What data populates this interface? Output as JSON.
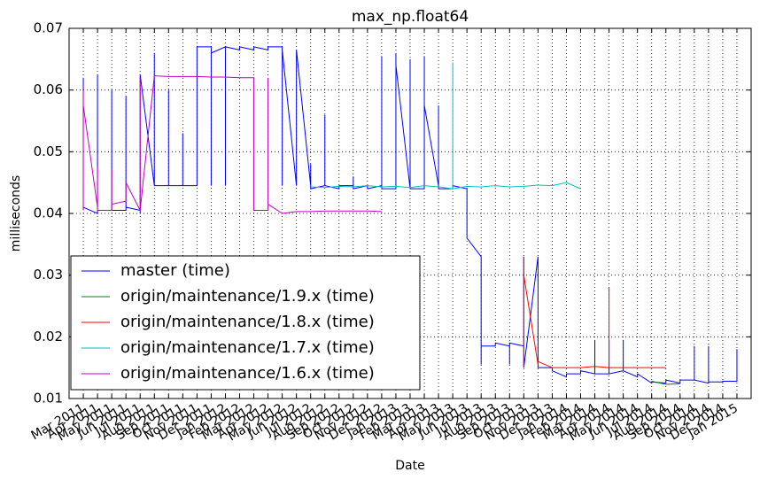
{
  "chart_data": {
    "type": "line",
    "title": "max_np.float64",
    "x_label": "Date",
    "y_label": "milliseconds",
    "xlim": [
      "2011-02",
      "2015-02"
    ],
    "ylim": [
      0.01,
      0.07
    ],
    "yticks": [
      0.01,
      0.02,
      0.03,
      0.04,
      0.05,
      0.06,
      0.07
    ],
    "xticks": [
      {
        "value": "2011-03",
        "label": "Mar 2011"
      },
      {
        "value": "2011-04",
        "label": "Apr 2011"
      },
      {
        "value": "2011-05",
        "label": "May 2011"
      },
      {
        "value": "2011-06",
        "label": "Jun 2011"
      },
      {
        "value": "2011-07",
        "label": "Jul 2011"
      },
      {
        "value": "2011-08",
        "label": "Aug 2011"
      },
      {
        "value": "2011-09",
        "label": "Sep 2011"
      },
      {
        "value": "2011-10",
        "label": "Oct 2011"
      },
      {
        "value": "2011-11",
        "label": "Nov 2011"
      },
      {
        "value": "2011-12",
        "label": "Dec 2011"
      },
      {
        "value": "2012-01",
        "label": "Jan 2012"
      },
      {
        "value": "2012-02",
        "label": "Feb 2012"
      },
      {
        "value": "2012-03",
        "label": "Mar 2012"
      },
      {
        "value": "2012-04",
        "label": "Apr 2012"
      },
      {
        "value": "2012-05",
        "label": "May 2012"
      },
      {
        "value": "2012-06",
        "label": "Jun 2012"
      },
      {
        "value": "2012-07",
        "label": "Jul 2012"
      },
      {
        "value": "2012-08",
        "label": "Aug 2012"
      },
      {
        "value": "2012-09",
        "label": "Sep 2012"
      },
      {
        "value": "2012-10",
        "label": "Oct 2012"
      },
      {
        "value": "2012-11",
        "label": "Nov 2012"
      },
      {
        "value": "2012-12",
        "label": "Dec 2012"
      },
      {
        "value": "2013-01",
        "label": "Jan 2013"
      },
      {
        "value": "2013-02",
        "label": "Feb 2013"
      },
      {
        "value": "2013-03",
        "label": "Mar 2013"
      },
      {
        "value": "2013-04",
        "label": "Apr 2013"
      },
      {
        "value": "2013-05",
        "label": "May 2013"
      },
      {
        "value": "2013-06",
        "label": "Jun 2013"
      },
      {
        "value": "2013-07",
        "label": "Jul 2013"
      },
      {
        "value": "2013-08",
        "label": "Aug 2013"
      },
      {
        "value": "2013-09",
        "label": "Sep 2013"
      },
      {
        "value": "2013-10",
        "label": "Oct 2013"
      },
      {
        "value": "2013-11",
        "label": "Nov 2013"
      },
      {
        "value": "2013-12",
        "label": "Dec 2013"
      },
      {
        "value": "2014-01",
        "label": "Jan 2014"
      },
      {
        "value": "2014-02",
        "label": "Feb 2014"
      },
      {
        "value": "2014-03",
        "label": "Mar 2014"
      },
      {
        "value": "2014-04",
        "label": "Apr 2014"
      },
      {
        "value": "2014-05",
        "label": "May 2014"
      },
      {
        "value": "2014-06",
        "label": "Jun 2014"
      },
      {
        "value": "2014-07",
        "label": "Jul 2014"
      },
      {
        "value": "2014-08",
        "label": "Aug 2014"
      },
      {
        "value": "2014-09",
        "label": "Sep 2014"
      },
      {
        "value": "2014-10",
        "label": "Oct 2014"
      },
      {
        "value": "2014-11",
        "label": "Nov 2014"
      },
      {
        "value": "2014-12",
        "label": "Dec 2014"
      },
      {
        "value": "2015-01",
        "label": "Jan 2015"
      }
    ],
    "grid": true,
    "legend": "lower left",
    "series": [
      {
        "name": "master (time)",
        "color": "#0000ff",
        "x": [
          "2011-03",
          "2011-03",
          "2011-03",
          "2011-03",
          "2011-03",
          "2011-04",
          "2011-04",
          "2011-04",
          "2011-05",
          "2011-05",
          "2011-05",
          "2011-06",
          "2011-06",
          "2011-06",
          "2011-07",
          "2011-07",
          "2011-07",
          "2011-07",
          "2011-08",
          "2011-08",
          "2011-08",
          "2011-09",
          "2011-09",
          "2011-09",
          "2011-10",
          "2011-10",
          "2011-10",
          "2011-11",
          "2011-11",
          "2011-11",
          "2011-12",
          "2011-12",
          "2011-12",
          "2012-01",
          "2012-01",
          "2012-01",
          "2012-02",
          "2012-02",
          "2012-03",
          "2012-03",
          "2012-04",
          "2012-04",
          "2012-05",
          "2012-05",
          "2012-05",
          "2012-06",
          "2012-06",
          "2012-06",
          "2012-06",
          "2012-07",
          "2012-07",
          "2012-07",
          "2012-08",
          "2012-08",
          "2012-08",
          "2012-09",
          "2012-09",
          "2012-10",
          "2012-10",
          "2012-10",
          "2012-11",
          "2012-11",
          "2012-12",
          "2012-12",
          "2012-12",
          "2013-01",
          "2013-01",
          "2013-01",
          "2013-01",
          "2013-02",
          "2013-02",
          "2013-02",
          "2013-03",
          "2013-03",
          "2013-03",
          "2013-03",
          "2013-04",
          "2013-04",
          "2013-04",
          "2013-05",
          "2013-05",
          "2013-06",
          "2013-06",
          "2013-06",
          "2013-07",
          "2013-07",
          "2013-07",
          "2013-07",
          "2013-08",
          "2013-08",
          "2013-09",
          "2013-09",
          "2013-09",
          "2013-10",
          "2013-10",
          "2013-10",
          "2013-11",
          "2013-11",
          "2013-11",
          "2013-12",
          "2013-12",
          "2014-01",
          "2014-01",
          "2014-02",
          "2014-02",
          "2014-03",
          "2014-03",
          "2014-03",
          "2014-04",
          "2014-04",
          "2014-04",
          "2014-05",
          "2014-05",
          "2014-05",
          "2014-06",
          "2014-06",
          "2014-07",
          "2014-07",
          "2014-08",
          "2014-08",
          "2014-09",
          "2014-09",
          "2014-10",
          "2014-10",
          "2014-10",
          "2014-11",
          "2014-11",
          "2014-11",
          "2014-12",
          "2014-12",
          "2015-01",
          "2015-01"
        ],
        "values": [
          0.0405,
          0.062,
          0.0405,
          0.059,
          0.041,
          0.04,
          0.0625,
          0.0405,
          0.0405,
          0.06,
          0.0405,
          0.0405,
          0.059,
          0.041,
          0.0405,
          0.0625,
          0.04,
          0.0625,
          0.0445,
          0.066,
          0.0445,
          0.0445,
          0.06,
          0.0445,
          0.0445,
          0.053,
          0.0445,
          0.0445,
          0.066,
          0.067,
          0.067,
          0.0445,
          0.066,
          0.067,
          0.0445,
          0.067,
          0.0665,
          0.067,
          0.0665,
          0.067,
          0.0665,
          0.067,
          0.067,
          0.0445,
          0.0665,
          0.0445,
          0.0665,
          0.0445,
          0.0665,
          0.0445,
          0.048,
          0.044,
          0.0445,
          0.056,
          0.0445,
          0.044,
          0.0445,
          0.0445,
          0.046,
          0.044,
          0.0445,
          0.044,
          0.0445,
          0.0655,
          0.044,
          0.044,
          0.066,
          0.044,
          0.064,
          0.044,
          0.065,
          0.044,
          0.044,
          0.0655,
          0.044,
          0.0575,
          0.0445,
          0.0575,
          0.044,
          0.044,
          0.0445,
          0.044,
          0.0365,
          0.036,
          0.033,
          0.0155,
          0.0185,
          0.0185,
          0.0185,
          0.019,
          0.0185,
          0.0155,
          0.019,
          0.0185,
          0.033,
          0.015,
          0.033,
          0.0155,
          0.015,
          0.015,
          0.0145,
          0.0135,
          0.014,
          0.014,
          0.0145,
          0.014,
          0.0195,
          0.014,
          0.014,
          0.0195,
          0.014,
          0.0145,
          0.0195,
          0.0145,
          0.0135,
          0.014,
          0.0125,
          0.0127,
          0.0125,
          0.013,
          0.0125,
          0.013,
          0.013,
          0.0185,
          0.013,
          0.0125,
          0.0185,
          0.0127,
          0.0127,
          0.0128,
          0.0128,
          0.018
        ]
      },
      {
        "name": "origin/maintenance/1.9.x (time)",
        "color": "#008000",
        "x": [
          "2014-07",
          "2014-08",
          "2014-09"
        ],
        "values": [
          0.0128,
          0.0123,
          0.0124
        ]
      },
      {
        "name": "origin/maintenance/1.8.x (time)",
        "color": "#ff0000",
        "x": [
          "2013-10",
          "2013-10",
          "2013-10",
          "2013-10",
          "2013-11",
          "2013-11",
          "2013-12",
          "2014-01",
          "2014-02",
          "2014-03",
          "2014-04",
          "2014-04",
          "2014-04",
          "2014-05",
          "2014-06",
          "2014-07",
          "2014-08"
        ],
        "values": [
          0.016,
          0.033,
          0.015,
          0.03,
          0.0155,
          0.016,
          0.015,
          0.015,
          0.015,
          0.0152,
          0.015,
          0.028,
          0.015,
          0.015,
          0.015,
          0.015,
          0.015
        ]
      },
      {
        "name": "origin/maintenance/1.7.x (time)",
        "color": "#00bfbf",
        "x": [
          "2012-07",
          "2012-08",
          "2012-09",
          "2012-10",
          "2012-11",
          "2012-12",
          "2013-01",
          "2013-02",
          "2013-03",
          "2013-04",
          "2013-05",
          "2013-05",
          "2013-05",
          "2013-06",
          "2013-07",
          "2013-08",
          "2013-09",
          "2013-10",
          "2013-11",
          "2013-12",
          "2014-01",
          "2014-02"
        ],
        "values": [
          0.0443,
          0.0442,
          0.0444,
          0.0443,
          0.0445,
          0.0443,
          0.0444,
          0.0442,
          0.0445,
          0.0443,
          0.044,
          0.0645,
          0.044,
          0.0444,
          0.0443,
          0.0445,
          0.0443,
          0.0444,
          0.0446,
          0.0445,
          0.045,
          0.044
        ]
      },
      {
        "name": "origin/maintenance/1.6.x (time)",
        "color": "#bf00bf",
        "x": [
          "2011-03",
          "2011-03",
          "2011-03",
          "2011-03",
          "2011-04",
          "2011-04",
          "2011-04",
          "2011-05",
          "2011-05",
          "2011-05",
          "2011-06",
          "2011-06",
          "2011-07",
          "2011-07",
          "2011-07",
          "2011-08",
          "2011-09",
          "2011-10",
          "2011-11",
          "2011-12",
          "2012-01",
          "2012-02",
          "2012-03",
          "2012-03",
          "2012-03",
          "2012-04",
          "2012-04",
          "2012-04",
          "2012-04",
          "2012-05",
          "2012-06",
          "2012-07",
          "2012-08",
          "2012-09",
          "2012-10",
          "2012-11",
          "2012-12"
        ],
        "values": [
          0.0405,
          0.06,
          0.0405,
          0.0575,
          0.041,
          0.0475,
          0.0405,
          0.0405,
          0.047,
          0.0415,
          0.042,
          0.045,
          0.0405,
          0.062,
          0.0405,
          0.0623,
          0.0622,
          0.0622,
          0.0622,
          0.0621,
          0.0621,
          0.062,
          0.062,
          0.0605,
          0.0405,
          0.0405,
          0.062,
          0.0405,
          0.0415,
          0.04,
          0.0403,
          0.0403,
          0.0404,
          0.0404,
          0.0404,
          0.0404,
          0.0403
        ]
      }
    ]
  }
}
